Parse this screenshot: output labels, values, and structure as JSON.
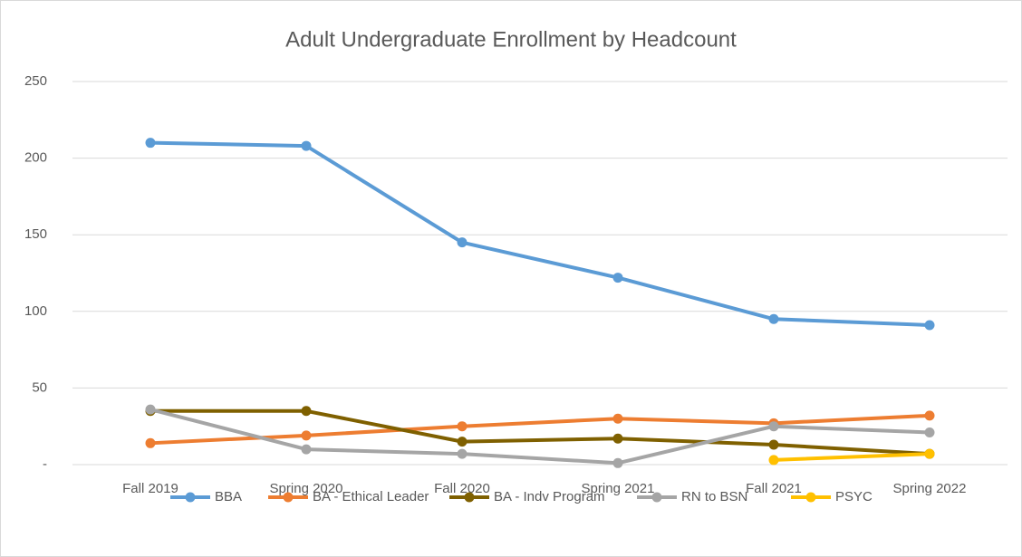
{
  "chart_data": {
    "type": "line",
    "title": "Adult Undergraduate Enrollment by Headcount",
    "categories": [
      "Fall 2019",
      "Spring 2020",
      "Fall 2020",
      "Spring 2021",
      "Fall 2021",
      "Spring 2022"
    ],
    "series": [
      {
        "name": "BBA",
        "color": "#5b9bd5",
        "values": [
          210,
          208,
          145,
          122,
          95,
          91
        ]
      },
      {
        "name": "BA - Ethical Leader",
        "color": "#ed7d31",
        "values": [
          14,
          19,
          25,
          30,
          27,
          32
        ]
      },
      {
        "name": "BA - Indv Program",
        "color": "#7f6000",
        "values": [
          35,
          35,
          15,
          17,
          13,
          7
        ]
      },
      {
        "name": "RN to BSN",
        "color": "#a5a5a5",
        "values": [
          36,
          10,
          7,
          1,
          25,
          21
        ]
      },
      {
        "name": "PSYC",
        "color": "#ffc000",
        "values": [
          null,
          null,
          null,
          null,
          3,
          7
        ]
      }
    ],
    "ylim": [
      0,
      250
    ],
    "yticks": [
      {
        "value": 0,
        "label": "-"
      },
      50,
      100,
      150,
      200,
      250
    ],
    "grid": true,
    "legend": "bottom"
  }
}
